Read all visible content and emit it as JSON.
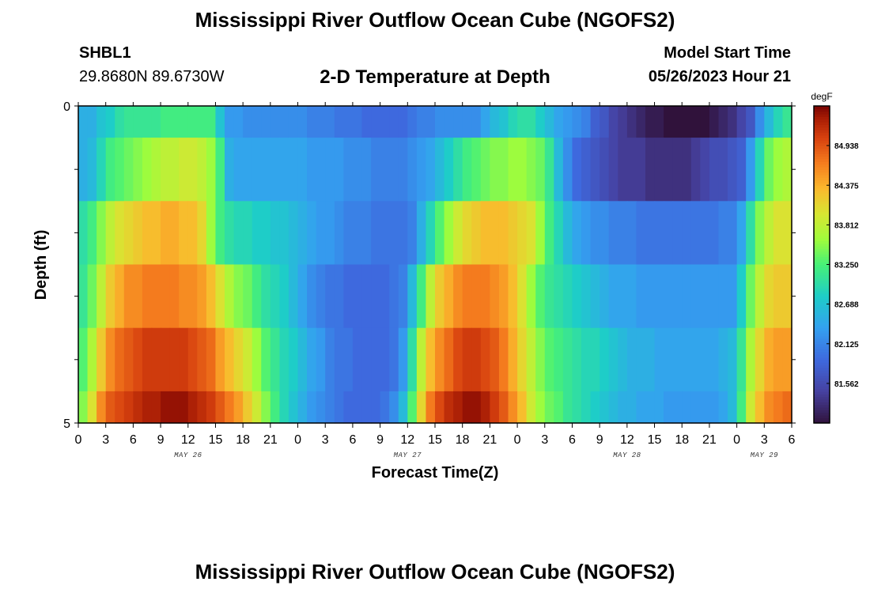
{
  "title": "Mississippi River Outflow Ocean Cube (NGOFS2)",
  "title_bottom": "Mississippi River Outflow Ocean Cube (NGOFS2)",
  "station": {
    "id": "SHBL1",
    "coords": "29.8680N  89.6730W"
  },
  "model_start": {
    "label": "Model Start Time",
    "value": "05/26/2023 Hour 21"
  },
  "chart_data": {
    "type": "heatmap",
    "title": "2-D Temperature at Depth",
    "xlabel": "Forecast Time(Z)",
    "ylabel": "Depth (ft)",
    "y_ticks": [
      {
        "value": 0,
        "label": "0"
      },
      {
        "value": 5,
        "label": "5"
      }
    ],
    "ylim": [
      0,
      5
    ],
    "xlim": [
      0,
      78
    ],
    "x_tick_labels": [
      "0",
      "3",
      "6",
      "9",
      "12",
      "15",
      "18",
      "21",
      "0",
      "3",
      "6",
      "9",
      "12",
      "15",
      "18",
      "21",
      "0",
      "3",
      "6",
      "9",
      "12",
      "15",
      "18",
      "21",
      "0",
      "3",
      "6"
    ],
    "date_labels": [
      {
        "text": "MAY 26",
        "x": 12
      },
      {
        "text": "MAY 27",
        "x": 36
      },
      {
        "text": "MAY 28",
        "x": 60
      },
      {
        "text": "MAY 29",
        "x": 75
      }
    ],
    "colorbar": {
      "unit": "degF",
      "min": 81.0,
      "max": 85.5,
      "labels": [
        "84.938",
        "84.375",
        "83.812",
        "83.250",
        "82.688",
        "82.125",
        "81.562"
      ]
    },
    "x_hours": [
      0,
      1,
      2,
      3,
      4,
      5,
      6,
      7,
      8,
      9,
      10,
      11,
      12,
      13,
      14,
      15,
      16,
      17,
      18,
      19,
      20,
      21,
      22,
      23,
      24,
      25,
      26,
      27,
      28,
      29,
      30,
      31,
      32,
      33,
      34,
      35,
      36,
      37,
      38,
      39,
      40,
      41,
      42,
      43,
      44,
      45,
      46,
      47,
      48,
      49,
      50,
      51,
      52,
      53,
      54,
      55,
      56,
      57,
      58,
      59,
      60,
      61,
      62,
      63,
      64,
      65,
      66,
      67,
      68,
      69,
      70,
      71,
      72,
      73,
      74,
      75,
      76,
      77
    ],
    "layers": [
      {
        "depth_top": 0.0,
        "depth_bottom": 0.5,
        "values": [
          82.5,
          82.5,
          82.7,
          82.8,
          83.0,
          83.1,
          83.1,
          83.1,
          83.1,
          83.2,
          83.2,
          83.2,
          83.2,
          83.2,
          83.2,
          82.7,
          82.3,
          82.3,
          82.2,
          82.2,
          82.2,
          82.2,
          82.2,
          82.2,
          82.2,
          82.1,
          82.1,
          82.1,
          82.0,
          82.0,
          82.0,
          81.9,
          81.9,
          81.9,
          81.9,
          81.9,
          82.0,
          82.1,
          82.1,
          82.2,
          82.2,
          82.2,
          82.2,
          82.2,
          82.4,
          82.6,
          82.7,
          82.9,
          83.0,
          83.0,
          82.8,
          82.6,
          82.4,
          82.3,
          82.2,
          82.1,
          81.8,
          81.7,
          81.5,
          81.4,
          81.3,
          81.2,
          81.1,
          81.1,
          81.0,
          81.0,
          81.0,
          81.0,
          81.0,
          81.1,
          81.2,
          81.3,
          81.5,
          81.7,
          82.2,
          82.6,
          82.9,
          83.1
        ]
      },
      {
        "depth_top": 0.5,
        "depth_bottom": 1.5,
        "values": [
          82.5,
          82.6,
          82.9,
          83.2,
          83.3,
          83.4,
          83.5,
          83.6,
          83.7,
          83.8,
          83.8,
          83.9,
          83.9,
          83.8,
          83.6,
          83.2,
          82.5,
          82.4,
          82.4,
          82.4,
          82.4,
          82.4,
          82.4,
          82.4,
          82.4,
          82.3,
          82.3,
          82.3,
          82.3,
          82.2,
          82.2,
          82.2,
          82.1,
          82.1,
          82.1,
          82.1,
          82.2,
          82.3,
          82.4,
          82.6,
          82.8,
          83.0,
          83.2,
          83.3,
          83.4,
          83.5,
          83.5,
          83.6,
          83.6,
          83.5,
          83.4,
          83.1,
          82.6,
          82.2,
          81.9,
          81.8,
          81.7,
          81.6,
          81.5,
          81.4,
          81.4,
          81.4,
          81.3,
          81.3,
          81.3,
          81.3,
          81.3,
          81.4,
          81.5,
          81.6,
          81.6,
          81.7,
          81.8,
          82.3,
          82.9,
          83.4,
          83.6,
          83.7
        ]
      },
      {
        "depth_top": 1.5,
        "depth_bottom": 2.5,
        "values": [
          83.0,
          83.2,
          83.5,
          83.8,
          84.0,
          84.1,
          84.2,
          84.3,
          84.3,
          84.4,
          84.4,
          84.3,
          84.3,
          84.1,
          83.6,
          83.2,
          83.0,
          82.9,
          82.9,
          82.8,
          82.8,
          82.7,
          82.7,
          82.6,
          82.5,
          82.4,
          82.3,
          82.3,
          82.2,
          82.1,
          82.1,
          82.1,
          82.0,
          82.0,
          82.0,
          82.0,
          82.1,
          82.5,
          82.9,
          83.3,
          83.6,
          83.9,
          84.1,
          84.2,
          84.3,
          84.3,
          84.3,
          84.2,
          84.1,
          84.0,
          83.6,
          83.2,
          82.9,
          82.6,
          82.4,
          82.3,
          82.2,
          82.2,
          82.1,
          82.1,
          82.1,
          82.0,
          82.0,
          82.0,
          82.0,
          82.0,
          82.0,
          82.0,
          82.0,
          82.0,
          82.1,
          82.1,
          82.4,
          83.0,
          83.5,
          83.8,
          84.0,
          84.0
        ]
      },
      {
        "depth_top": 2.5,
        "depth_bottom": 3.5,
        "values": [
          83.1,
          83.4,
          83.8,
          84.2,
          84.4,
          84.6,
          84.6,
          84.7,
          84.7,
          84.7,
          84.7,
          84.6,
          84.6,
          84.5,
          84.3,
          84.0,
          83.7,
          83.5,
          83.4,
          83.2,
          83.0,
          82.9,
          82.8,
          82.6,
          82.4,
          82.2,
          82.1,
          82.0,
          82.0,
          81.9,
          81.9,
          81.9,
          81.9,
          81.9,
          82.0,
          82.1,
          82.6,
          83.2,
          83.8,
          84.2,
          84.4,
          84.6,
          84.7,
          84.7,
          84.7,
          84.6,
          84.5,
          84.3,
          84.0,
          83.6,
          83.3,
          83.1,
          83.0,
          82.9,
          82.8,
          82.7,
          82.6,
          82.5,
          82.4,
          82.4,
          82.4,
          82.3,
          82.3,
          82.3,
          82.3,
          82.3,
          82.3,
          82.3,
          82.3,
          82.3,
          82.3,
          82.3,
          82.8,
          83.4,
          83.8,
          84.1,
          84.2,
          84.2
        ]
      },
      {
        "depth_top": 3.5,
        "depth_bottom": 4.5,
        "values": [
          83.3,
          83.7,
          84.2,
          84.6,
          84.8,
          84.9,
          85.0,
          85.1,
          85.1,
          85.1,
          85.1,
          85.1,
          85.0,
          84.9,
          84.8,
          84.5,
          84.3,
          84.1,
          83.9,
          83.6,
          83.3,
          83.1,
          82.9,
          82.8,
          82.6,
          82.4,
          82.3,
          82.1,
          82.0,
          82.0,
          81.9,
          81.9,
          81.9,
          81.9,
          82.0,
          82.3,
          83.0,
          83.8,
          84.3,
          84.6,
          84.8,
          85.0,
          85.1,
          85.1,
          85.0,
          84.9,
          84.7,
          84.4,
          84.1,
          83.8,
          83.5,
          83.3,
          83.2,
          83.1,
          83.0,
          82.9,
          82.9,
          82.8,
          82.7,
          82.6,
          82.5,
          82.5,
          82.5,
          82.4,
          82.4,
          82.4,
          82.4,
          82.4,
          82.4,
          82.4,
          82.5,
          82.6,
          83.1,
          83.7,
          84.1,
          84.4,
          84.5,
          84.5
        ]
      },
      {
        "depth_top": 4.5,
        "depth_bottom": 5.0,
        "values": [
          83.5,
          84.0,
          84.6,
          84.9,
          85.0,
          85.1,
          85.2,
          85.3,
          85.3,
          85.4,
          85.4,
          85.4,
          85.3,
          85.2,
          85.1,
          84.9,
          84.7,
          84.5,
          84.2,
          83.9,
          83.5,
          83.2,
          82.9,
          82.7,
          82.5,
          82.3,
          82.2,
          82.1,
          82.0,
          81.9,
          81.9,
          81.9,
          81.9,
          82.0,
          82.2,
          82.6,
          83.3,
          84.1,
          84.7,
          85.0,
          85.2,
          85.3,
          85.4,
          85.4,
          85.3,
          85.1,
          84.9,
          84.6,
          84.3,
          83.9,
          83.6,
          83.4,
          83.3,
          83.1,
          83.0,
          82.9,
          82.8,
          82.7,
          82.6,
          82.5,
          82.5,
          82.4,
          82.4,
          82.4,
          82.3,
          82.3,
          82.3,
          82.3,
          82.3,
          82.3,
          82.4,
          82.6,
          83.2,
          83.9,
          84.3,
          84.6,
          84.7,
          84.8
        ]
      }
    ]
  }
}
